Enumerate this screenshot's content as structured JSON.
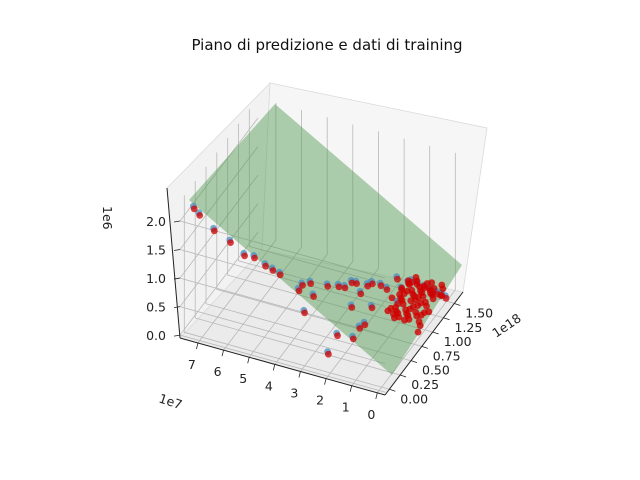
{
  "chart_data": {
    "type": "scatter",
    "subtype": "3d-scatter-with-plane",
    "title": "Piano di predizione e dati di training",
    "axes": {
      "x": {
        "offset_label": "1e7",
        "ticks": [
          "0",
          "1",
          "2",
          "3",
          "4",
          "5",
          "6",
          "7"
        ],
        "range": [
          -0.3,
          7.7
        ]
      },
      "y": {
        "offset_label": "1e18",
        "ticks": [
          "0.00",
          "0.25",
          "0.50",
          "0.75",
          "1.00",
          "1.25",
          "1.50"
        ],
        "range": [
          -0.1,
          1.7
        ]
      },
      "z": {
        "offset_label": "1e6",
        "ticks": [
          "0.0",
          "0.5",
          "1.0",
          "1.5",
          "2.0"
        ],
        "range": [
          -0.05,
          2.35
        ]
      }
    },
    "grid": true,
    "plane": {
      "color": "#4f9a4f",
      "opacity": 0.45,
      "description": "regression plane"
    },
    "series": [
      {
        "role": "training",
        "color": "#4a8fc0"
      },
      {
        "role": "prediction",
        "color": "#d00000"
      }
    ],
    "points_x": [
      0.02,
      0.15,
      0.3,
      0.45,
      0.55,
      0.7,
      0.95,
      1.1,
      1.15,
      1.25,
      1.2,
      1.5,
      1.65,
      1.8,
      1.9,
      1.92,
      1.9,
      1.95,
      2.05,
      2.15,
      2.25,
      2.35,
      2.5,
      2.6,
      2.4,
      2.45,
      2.7,
      2.85,
      3.15,
      3.7,
      3.5,
      3.6,
      3.85,
      3.9,
      4.55,
      4.75,
      4.95,
      5.3,
      5.6,
      6.1,
      6.7,
      7.2,
      7.4
    ],
    "points_y": [
      1.5,
      1.48,
      1.46,
      1.44,
      1.45,
      1.4,
      1.38,
      1.35,
      1.3,
      1.2,
      1.08,
      1.25,
      1.1,
      1.05,
      0.9,
      0.75,
      0.62,
      0.5,
      1.0,
      0.95,
      0.85,
      0.7,
      0.9,
      0.85,
      0.4,
      0.22,
      0.75,
      0.7,
      0.62,
      0.55,
      0.5,
      0.35,
      0.45,
      0.4,
      0.35,
      0.3,
      0.25,
      0.2,
      0.15,
      0.12,
      0.1,
      0.06,
      0.05
    ],
    "points_z": [
      0.0,
      0.05,
      0.08,
      0.1,
      0.12,
      0.2,
      0.25,
      0.3,
      0.32,
      0.3,
      0.18,
      0.4,
      0.35,
      0.45,
      0.2,
      0.05,
      0.12,
      0.05,
      0.5,
      0.5,
      0.45,
      0.35,
      0.55,
      0.6,
      0.15,
      0.0,
      0.6,
      0.65,
      0.7,
      0.75,
      0.6,
      0.45,
      0.8,
      0.75,
      1.0,
      1.1,
      1.2,
      1.35,
      1.4,
      1.6,
      1.75,
      2.0,
      2.1
    ]
  }
}
